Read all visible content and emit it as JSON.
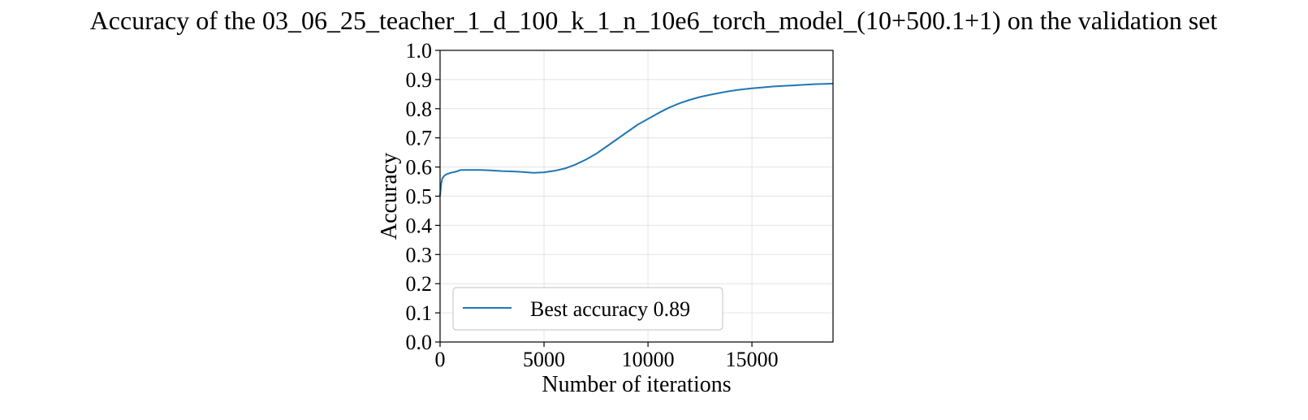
{
  "chart_data": {
    "type": "line",
    "title": "Accuracy of the 03_06_25_teacher_1_d_100_k_1_n_10e6_torch_model_(10+500.1+1) on the validation set",
    "xlabel": "Number of iterations",
    "ylabel": "Accuracy",
    "xlim": [
      0,
      18900
    ],
    "ylim": [
      0.0,
      1.0
    ],
    "x_ticks": [
      0,
      5000,
      10000,
      15000
    ],
    "x_tick_labels": [
      "0",
      "5000",
      "10000",
      "15000"
    ],
    "y_ticks": [
      0.0,
      0.1,
      0.2,
      0.3,
      0.4,
      0.5,
      0.6,
      0.7,
      0.8,
      0.9,
      1.0
    ],
    "y_tick_labels": [
      "0.0",
      "0.1",
      "0.2",
      "0.3",
      "0.4",
      "0.5",
      "0.6",
      "0.7",
      "0.8",
      "0.9",
      "1.0"
    ],
    "grid": true,
    "legend_position": "lower-left",
    "series": [
      {
        "name": "Best accuracy 0.89",
        "color": "#1f77b4",
        "x": [
          0,
          50,
          100,
          200,
          300,
          500,
          800,
          1000,
          1500,
          2000,
          2500,
          3000,
          3500,
          4000,
          4500,
          5000,
          5500,
          6000,
          6500,
          7000,
          7500,
          8000,
          8500,
          9000,
          9500,
          10000,
          10500,
          11000,
          11500,
          12000,
          12500,
          13000,
          13500,
          14000,
          14500,
          15000,
          15500,
          16000,
          16500,
          17000,
          17500,
          18000,
          18500,
          18900
        ],
        "y": [
          0.5,
          0.54,
          0.56,
          0.57,
          0.575,
          0.58,
          0.585,
          0.59,
          0.59,
          0.59,
          0.588,
          0.586,
          0.585,
          0.583,
          0.58,
          0.582,
          0.587,
          0.595,
          0.608,
          0.625,
          0.645,
          0.67,
          0.695,
          0.72,
          0.745,
          0.765,
          0.785,
          0.803,
          0.818,
          0.83,
          0.84,
          0.848,
          0.855,
          0.861,
          0.866,
          0.87,
          0.873,
          0.876,
          0.878,
          0.88,
          0.882,
          0.884,
          0.885,
          0.886
        ]
      }
    ]
  }
}
